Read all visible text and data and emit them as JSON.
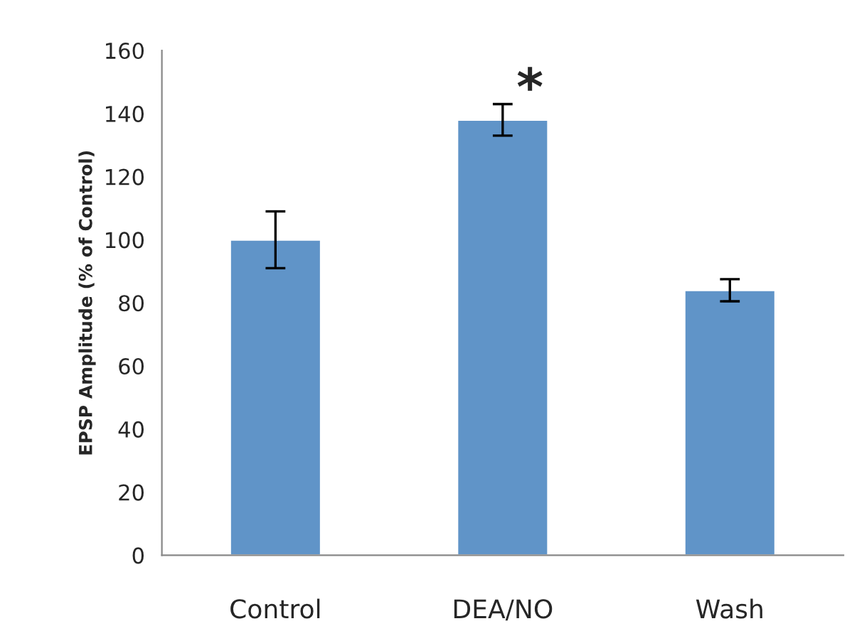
{
  "chart_data": {
    "type": "bar",
    "ylabel": "EPSP Amplitude (% of Control)",
    "categories": [
      "Control",
      "DEA/NO",
      "Wash"
    ],
    "values": [
      100,
      138,
      84
    ],
    "errors": [
      9,
      5,
      3.5
    ],
    "color": "#6094c8",
    "ylim": [
      0,
      160
    ],
    "yticks": [
      0,
      20,
      40,
      60,
      80,
      100,
      120,
      140,
      160
    ],
    "annotations": [
      "*"
    ]
  }
}
